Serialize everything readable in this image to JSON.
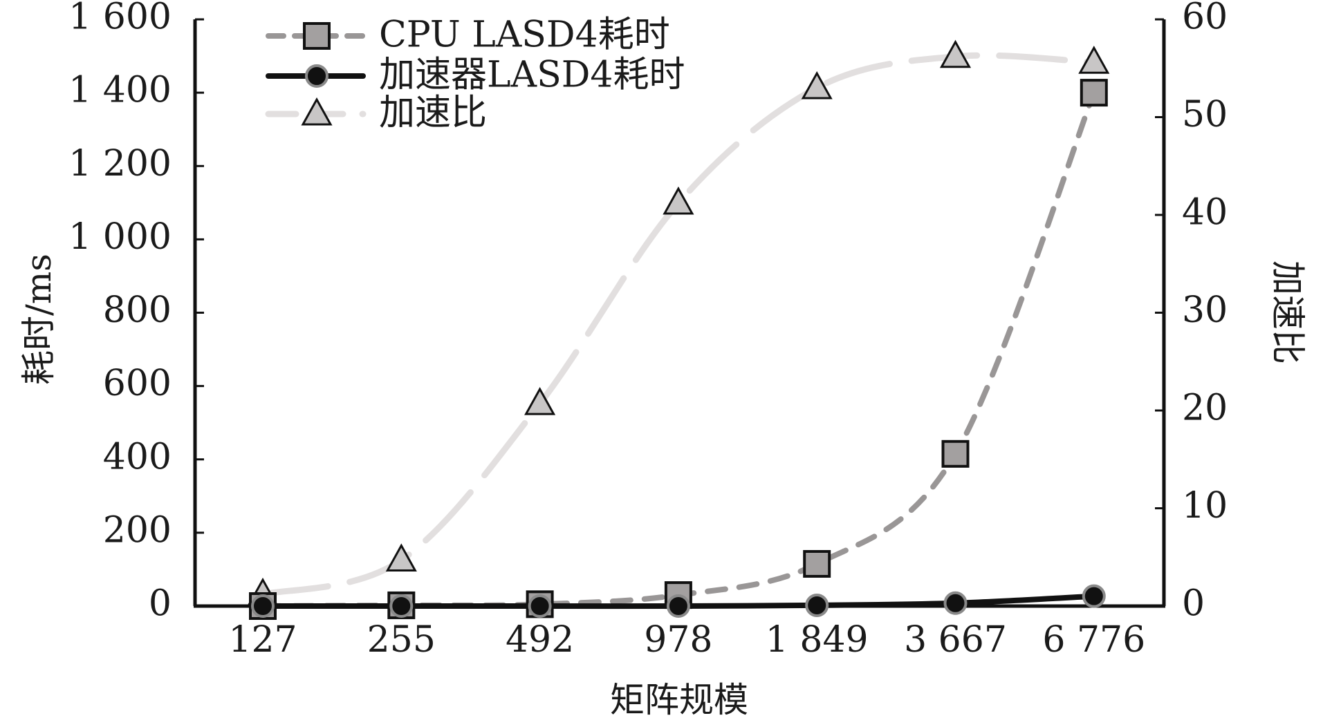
{
  "chart_data": {
    "type": "line",
    "x_categories": [
      "127",
      "255",
      "492",
      "978",
      "1 849",
      "3 667",
      "6 776"
    ],
    "xlabel": "矩阵规模",
    "ylabel_left": "耗时/ms",
    "ylabel_right": "加速比",
    "left_axis": {
      "ylim": [
        0,
        1600
      ],
      "ticks": [
        0,
        200,
        400,
        600,
        800,
        1000,
        1200,
        1400,
        1600
      ],
      "tick_labels": [
        "0",
        "200",
        "400",
        "600",
        "800",
        "1 000",
        "1 200",
        "1 400",
        "1 600"
      ]
    },
    "right_axis": {
      "ylim": [
        0,
        60
      ],
      "ticks": [
        0,
        10,
        20,
        30,
        40,
        50,
        60
      ],
      "tick_labels": [
        "0",
        "10",
        "20",
        "30",
        "40",
        "50",
        "60"
      ]
    },
    "series": [
      {
        "name": "CPU LASD4耗时",
        "axis": "left",
        "marker": "square",
        "line_style": "dashed",
        "color": "#999696",
        "marker_fill": "#a3a0a0",
        "values": [
          0,
          2,
          5,
          30,
          115,
          415,
          1400
        ]
      },
      {
        "name": "加速器LASD4耗时",
        "axis": "left",
        "marker": "circle",
        "line_style": "solid",
        "color": "#111111",
        "marker_fill": "#111111",
        "values": [
          0,
          0,
          0,
          0,
          2,
          8,
          27
        ]
      },
      {
        "name": "加速比",
        "axis": "right",
        "marker": "triangle",
        "line_style": "long-dash",
        "color": "#e2dfdf",
        "marker_fill": "#c8c6c6",
        "values": [
          1.2,
          4.7,
          20.7,
          41.2,
          53.0,
          56.2,
          55.6
        ]
      }
    ],
    "legend_position": "top-left"
  }
}
